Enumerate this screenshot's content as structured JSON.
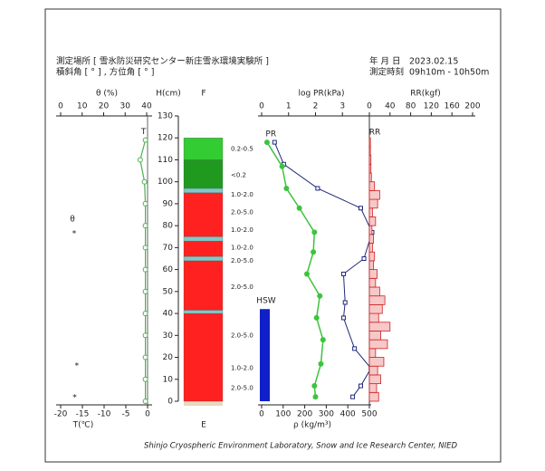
{
  "header": {
    "location": "測定場所 [ 雪氷防災研究センター新庄雪氷環境実験所 ]",
    "angle": "積斜角 [ ° ] , 方位角 [ ° ]",
    "date_label": "年 月 日",
    "date": "2023.02.15",
    "time_label": "測定時刻",
    "time": "09h10m - 10h50m"
  },
  "footer": "Shinjo Cryospheric Environment Laboratory, Snow and Ice Research Center, NIED",
  "chart_data": [
    {
      "type": "line",
      "x_label": "T(℃)",
      "x2_label": "θ (%)",
      "y_label": "H(cm)",
      "xlim": [
        -20,
        0
      ],
      "xticks": [
        -20,
        -15,
        -10,
        -5,
        0
      ],
      "x2lim": [
        0,
        40
      ],
      "x2ticks": [
        0,
        10,
        20,
        30,
        40
      ],
      "ylim": [
        0,
        130
      ],
      "yticks": [
        0,
        10,
        20,
        30,
        40,
        50,
        60,
        70,
        80,
        90,
        100,
        110,
        120,
        130
      ],
      "series": [
        {
          "name": "T",
          "color": "#4caf50",
          "x": [
            -0.5,
            -0.5,
            -0.5,
            -0.5,
            -0.5,
            -0.5,
            -0.5,
            -0.5,
            -0.5,
            -0.5,
            -0.7,
            -1.7,
            -0.5
          ],
          "y": [
            0,
            10,
            20,
            30,
            40,
            50,
            60,
            70,
            80,
            90,
            100,
            110,
            119
          ]
        },
        {
          "name": "θ",
          "marker": "*",
          "axis": "x2",
          "x": [
            7.5,
            6.5
          ],
          "y": [
            17,
            2.5
          ]
        }
      ]
    },
    {
      "type": "stratigraphy",
      "top_label": "F",
      "bottom_label": "E",
      "ylim": [
        0,
        130
      ],
      "layers": [
        {
          "bottom": 0,
          "top": 40,
          "color": "#ff2020"
        },
        {
          "bottom": 40,
          "top": 41.5,
          "color": "#7fc9c9"
        },
        {
          "bottom": 41.5,
          "top": 64,
          "color": "#ff2020"
        },
        {
          "bottom": 64,
          "top": 66,
          "color": "#7fc9c9"
        },
        {
          "bottom": 66,
          "top": 73,
          "color": "#ff2020"
        },
        {
          "bottom": 73,
          "top": 75,
          "color": "#7fc9c9"
        },
        {
          "bottom": 75,
          "top": 95,
          "color": "#ff2020"
        },
        {
          "bottom": 95,
          "top": 97,
          "color": "#7fc9c9"
        },
        {
          "bottom": 97,
          "top": 110,
          "color": "#1f9a1f"
        },
        {
          "bottom": 110,
          "top": 120,
          "color": "#33cc33"
        }
      ],
      "grain_sizes": [
        {
          "h": 115,
          "label": "0.2-0.5"
        },
        {
          "h": 103,
          "label": "<0.2"
        },
        {
          "h": 94,
          "label": "1.0-2.0"
        },
        {
          "h": 86,
          "label": "2.0-5.0"
        },
        {
          "h": 78,
          "label": "1.0-2.0"
        },
        {
          "h": 70,
          "label": "1.0-2.0"
        },
        {
          "h": 64,
          "label": "2.0-5.0"
        },
        {
          "h": 52,
          "label": "2.0-5.0"
        },
        {
          "h": 30,
          "label": "2.0-5.0"
        },
        {
          "h": 15,
          "label": "1.0-2.0"
        },
        {
          "h": 6,
          "label": "2.0-5.0"
        }
      ]
    },
    {
      "type": "profile",
      "x_label": "log PR(kPa)",
      "x2_label": "ρ (kg/m³)",
      "xlim": [
        0,
        4
      ],
      "xticks": [
        0,
        1,
        2,
        3
      ],
      "x2lim": [
        0,
        500
      ],
      "x2ticks": [
        0,
        100,
        200,
        300,
        400,
        500
      ],
      "ylim": [
        0,
        130
      ],
      "series": [
        {
          "name": "PR",
          "color": "#1f2a7a",
          "x": [
            0.48,
            0.82,
            2.08,
            3.68,
            4.1,
            3.8,
            3.04,
            3.1,
            3.04,
            3.45,
            4.06,
            3.68,
            3.38
          ],
          "y": [
            118,
            108,
            97,
            88,
            77,
            65,
            58,
            45,
            38,
            24,
            15,
            7,
            2
          ]
        },
        {
          "color": "#3cc43c",
          "axis": "x2",
          "x": [
            25,
            95,
            115,
            175,
            245,
            240,
            210,
            270,
            255,
            285,
            275,
            245,
            250
          ],
          "y": [
            118,
            107,
            97,
            88,
            77,
            68,
            58,
            48,
            38,
            28,
            17,
            7,
            2
          ]
        }
      ],
      "hsw": {
        "name": "HSW",
        "color": "#1020c8",
        "top": 42
      }
    },
    {
      "type": "histogram",
      "name": "RR",
      "x_label": "RR(kgf)",
      "xlim": [
        0,
        200
      ],
      "xticks": [
        0,
        40,
        80,
        120,
        160,
        200
      ],
      "color": "#d02020",
      "bins": [
        0,
        4,
        8,
        12,
        16,
        20,
        24,
        28,
        32,
        36,
        40,
        44,
        48,
        52,
        56,
        60,
        64,
        68,
        72,
        76,
        80,
        84,
        88,
        92,
        96,
        100,
        104,
        108,
        112,
        116,
        120
      ],
      "values": [
        18,
        14,
        22,
        16,
        28,
        12,
        35,
        22,
        40,
        18,
        25,
        30,
        20,
        12,
        15,
        8,
        10,
        6,
        8,
        5,
        12,
        6,
        16,
        20,
        10,
        4,
        3,
        3,
        2,
        2
      ]
    }
  ]
}
